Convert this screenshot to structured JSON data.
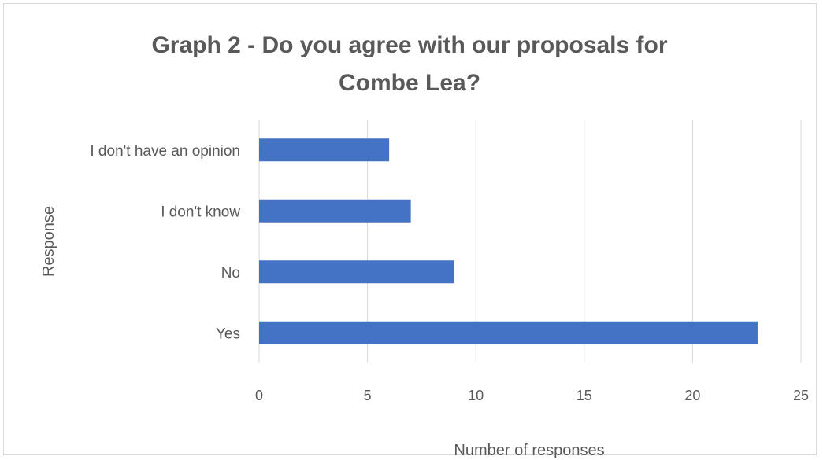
{
  "chart_data": {
    "type": "bar",
    "orientation": "horizontal",
    "title": "Graph 2 - Do you agree with our proposals for Combe Lea?",
    "title_lines": [
      "Graph 2 - Do you agree with our proposals for",
      "Combe Lea?"
    ],
    "categories": [
      "I don't have an opinion",
      "I don't know",
      "No",
      "Yes"
    ],
    "values": [
      6,
      7,
      9,
      23
    ],
    "xlabel": "Number of responses",
    "ylabel": "Response",
    "xlim": [
      0,
      25
    ],
    "xticks": [
      0,
      5,
      10,
      15,
      20,
      25
    ],
    "grid": "vertical",
    "legend": "none",
    "bar_color": "#4472C4",
    "gridline_color": "#d9d9d9",
    "text_color": "#595959"
  }
}
